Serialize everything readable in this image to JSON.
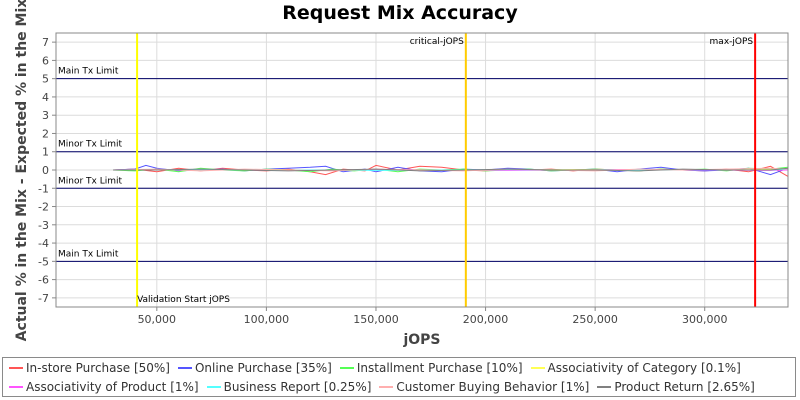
{
  "chart_data": {
    "type": "line",
    "title": "Request Mix Accuracy",
    "xlabel": "jOPS",
    "ylabel": "Actual % in the Mix - Expected % in the Mix",
    "xlim": [
      4000,
      338000
    ],
    "ylim": [
      -7.5,
      7.5
    ],
    "x_ticks": [
      50000,
      100000,
      150000,
      200000,
      250000,
      300000
    ],
    "x_tick_labels": [
      "50,000",
      "100,000",
      "150,000",
      "200,000",
      "250,000",
      "300,000"
    ],
    "y_ticks": [
      7,
      6,
      5,
      4,
      3,
      2,
      1,
      0,
      -1,
      -2,
      -3,
      -4,
      -5,
      -6,
      -7
    ],
    "y_tick_labels": [
      "7",
      "6",
      "5",
      "4",
      "3",
      "2",
      "1",
      "0",
      "-1",
      "-2",
      "-3",
      "-4",
      "-5",
      "-6",
      "-7"
    ],
    "grid": true,
    "legend_position": "bottom",
    "limits": [
      {
        "y": 5,
        "label": "Main Tx Limit",
        "color": "#000066"
      },
      {
        "y": 1,
        "label": "Minor Tx Limit",
        "color": "#000066"
      },
      {
        "y": -1,
        "label": "Minor Tx Limit",
        "color": "#000066"
      },
      {
        "y": -5,
        "label": "Main Tx Limit",
        "color": "#000066"
      }
    ],
    "markers": [
      {
        "x": 41000,
        "label": "Validation Start jOPS",
        "color": "#ffff00"
      },
      {
        "x": 191000,
        "label": "critical-jOPS",
        "color": "#ffcc00"
      },
      {
        "x": 323000,
        "label": "max-jOPS",
        "color": "#ff0000"
      }
    ],
    "series": [
      {
        "name": "In-store Purchase [50%]",
        "color": "#ff5555",
        "x": [
          30000,
          40000,
          50000,
          60000,
          70000,
          80000,
          90000,
          100000,
          110000,
          120000,
          127000,
          135000,
          145000,
          150000,
          160000,
          170000,
          180000,
          190000,
          200000,
          210000,
          220000,
          230000,
          240000,
          250000,
          260000,
          270000,
          280000,
          290000,
          300000,
          310000,
          320000,
          330000,
          338000
        ],
        "y": [
          0,
          0.05,
          -0.1,
          0.1,
          -0.05,
          0.1,
          0,
          -0.05,
          0.05,
          -0.1,
          -0.25,
          0.05,
          -0.05,
          0.25,
          0,
          0.2,
          0.15,
          0,
          -0.05,
          0.05,
          0,
          0.05,
          -0.05,
          0.05,
          0,
          -0.05,
          0.05,
          0,
          -0.05,
          0.05,
          -0.1,
          0.2,
          -0.35
        ]
      },
      {
        "name": "Online Purchase [35%]",
        "color": "#5555ff",
        "x": [
          30000,
          40000,
          45000,
          50000,
          60000,
          70000,
          80000,
          90000,
          100000,
          110000,
          120000,
          127000,
          135000,
          145000,
          150000,
          160000,
          170000,
          180000,
          190000,
          200000,
          210000,
          220000,
          230000,
          240000,
          250000,
          260000,
          270000,
          280000,
          290000,
          300000,
          310000,
          320000,
          330000,
          338000
        ],
        "y": [
          0,
          0.05,
          0.25,
          0.1,
          -0.05,
          0,
          0.05,
          -0.05,
          0.05,
          0.1,
          0.15,
          0.2,
          -0.1,
          0.05,
          -0.1,
          0.15,
          -0.05,
          -0.1,
          0.05,
          0,
          0.1,
          0.05,
          -0.05,
          0,
          0.05,
          -0.1,
          0.05,
          0.15,
          0,
          -0.05,
          0,
          0.1,
          -0.25,
          0.1
        ]
      },
      {
        "name": "Installment Purchase [10%]",
        "color": "#55ff55",
        "x": [
          30000,
          40000,
          50000,
          60000,
          70000,
          80000,
          90000,
          100000,
          110000,
          120000,
          130000,
          140000,
          150000,
          160000,
          170000,
          180000,
          190000,
          200000,
          210000,
          220000,
          230000,
          240000,
          250000,
          260000,
          270000,
          280000,
          290000,
          300000,
          310000,
          320000,
          330000,
          338000
        ],
        "y": [
          0,
          -0.05,
          0.05,
          -0.1,
          0.1,
          0,
          -0.05,
          0.05,
          0,
          -0.1,
          0.05,
          -0.05,
          0.05,
          -0.1,
          0.05,
          0,
          0.05,
          -0.05,
          0,
          0.05,
          -0.05,
          0,
          0.05,
          0,
          -0.05,
          0.05,
          0,
          0.05,
          -0.05,
          0.1,
          0.05,
          0.15
        ]
      },
      {
        "name": "Associativity of Category [0.1%]",
        "color": "#ffff55",
        "x": [
          30000,
          60000,
          90000,
          120000,
          150000,
          180000,
          210000,
          240000,
          270000,
          300000,
          330000,
          338000
        ],
        "y": [
          0,
          0,
          0.02,
          0,
          0,
          -0.02,
          0,
          0.02,
          0,
          0,
          0.02,
          0
        ]
      },
      {
        "name": "Associativity of Product [1%]",
        "color": "#ff55ff",
        "x": [
          30000,
          60000,
          90000,
          120000,
          150000,
          180000,
          210000,
          240000,
          270000,
          300000,
          330000,
          338000
        ],
        "y": [
          0,
          0.03,
          0,
          -0.03,
          0.02,
          0,
          -0.02,
          0,
          0.03,
          0,
          -0.02,
          0
        ]
      },
      {
        "name": "Business Report [0.25%]",
        "color": "#55ffff",
        "x": [
          30000,
          60000,
          90000,
          120000,
          150000,
          180000,
          210000,
          240000,
          270000,
          300000,
          330000,
          338000
        ],
        "y": [
          0,
          0.02,
          0,
          0,
          -0.02,
          0,
          0.02,
          0,
          0,
          0.02,
          0,
          0.05
        ]
      },
      {
        "name": "Customer Buying Behavior [1%]",
        "color": "#ffafaf",
        "x": [
          30000,
          50000,
          70000,
          90000,
          110000,
          130000,
          150000,
          170000,
          190000,
          210000,
          230000,
          250000,
          270000,
          290000,
          310000,
          330000,
          338000
        ],
        "y": [
          0,
          0.05,
          -0.05,
          0.05,
          0,
          -0.05,
          0.05,
          0,
          -0.05,
          0.05,
          0,
          -0.05,
          0.05,
          0,
          0.05,
          0.1,
          0.05
        ]
      },
      {
        "name": "Product Return [2.65%]",
        "color": "#808080",
        "x": [
          30000,
          50000,
          70000,
          90000,
          110000,
          130000,
          150000,
          170000,
          190000,
          210000,
          230000,
          250000,
          270000,
          290000,
          310000,
          330000,
          338000
        ],
        "y": [
          0,
          0,
          0.05,
          0,
          -0.05,
          0,
          0.05,
          -0.05,
          0,
          0.05,
          0,
          0,
          -0.05,
          0.05,
          0,
          0,
          0.1
        ]
      }
    ]
  }
}
